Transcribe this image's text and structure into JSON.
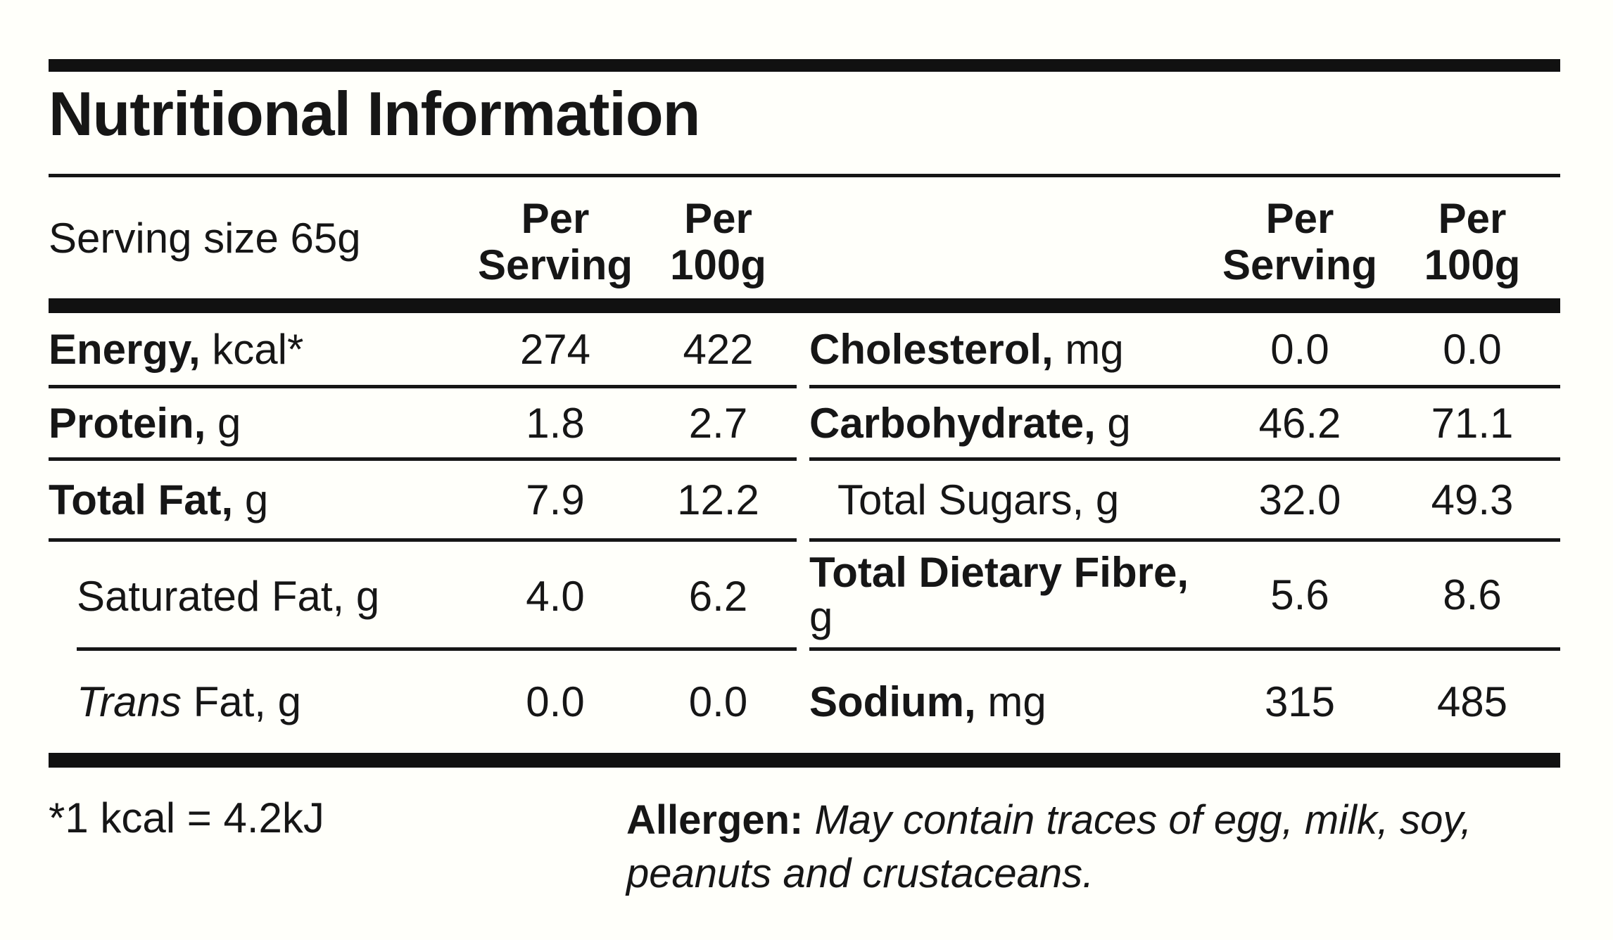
{
  "title": "Nutritional Information",
  "serving_size_note": "Serving size 65g",
  "columns": {
    "per_serving_line1": "Per",
    "per_serving_line2": "Serving",
    "per_100g_line1": "Per",
    "per_100g_line2": "100g"
  },
  "left": {
    "rows": [
      {
        "lead": "Energy,",
        "rest": " kcal*",
        "per_serving": "274",
        "per_100g": "422"
      },
      {
        "lead": "Protein,",
        "rest": " g",
        "per_serving": "1.8",
        "per_100g": "2.7"
      },
      {
        "lead": "Total Fat,",
        "rest": " g",
        "per_serving": "7.9",
        "per_100g": "12.2"
      },
      {
        "lead": "Saturated Fat, g",
        "rest": "",
        "per_serving": "4.0",
        "per_100g": "6.2"
      },
      {
        "lead": "Trans",
        "rest": " Fat, g",
        "per_serving": "0.0",
        "per_100g": "0.0"
      }
    ]
  },
  "right": {
    "rows": [
      {
        "lead": "Cholesterol,",
        "rest": " mg",
        "per_serving": "0.0",
        "per_100g": "0.0"
      },
      {
        "lead": "Carbohydrate,",
        "rest": " g",
        "per_serving": "46.2",
        "per_100g": "71.1"
      },
      {
        "lead": "Total Sugars, g",
        "rest": "",
        "per_serving": "32.0",
        "per_100g": "49.3"
      },
      {
        "lead": "Total Dietary Fibre,",
        "rest": " g",
        "per_serving": "5.6",
        "per_100g": "8.6"
      },
      {
        "lead": "Sodium,",
        "rest": " mg",
        "per_serving": "315",
        "per_100g": "485"
      }
    ]
  },
  "footnotes": {
    "kcal_note": "*1 kcal = 4.2kJ",
    "allergen_label": "Allergen:",
    "allergen_text": " May contain traces of egg, milk, soy, peanuts and crustaceans."
  },
  "colors": {
    "ink": "#161616",
    "bar": "#111111",
    "background": "#fffffa"
  }
}
